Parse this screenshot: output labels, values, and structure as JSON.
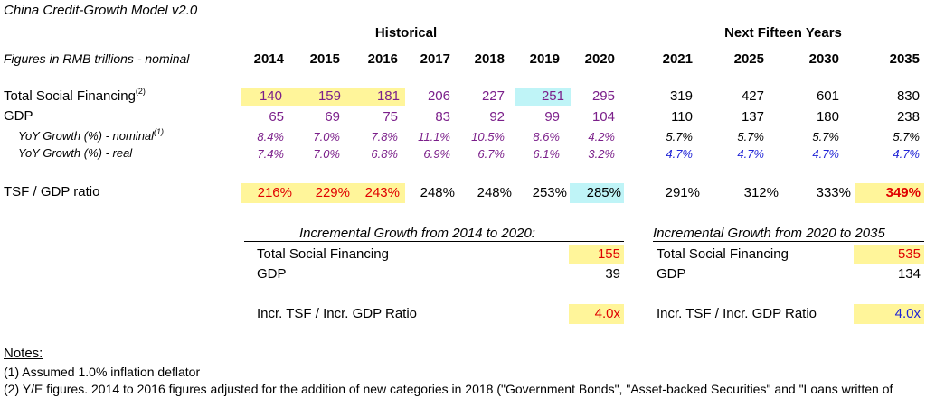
{
  "title": "China Credit-Growth Model v2.0",
  "subtitle": "Figures in RMB trillions - nominal",
  "headers": {
    "historical": "Historical",
    "next": "Next Fifteen Years"
  },
  "years": [
    "2014",
    "2015",
    "2016",
    "2017",
    "2018",
    "2019",
    "2020",
    "2021",
    "2025",
    "2030",
    "2035"
  ],
  "rows": {
    "tsf": {
      "label": "Total Social Financing",
      "sup": "(2)",
      "values": [
        "140",
        "159",
        "181",
        "206",
        "227",
        "251",
        "295",
        "319",
        "427",
        "601",
        "830"
      ]
    },
    "gdp": {
      "label": "GDP",
      "values": [
        "65",
        "69",
        "75",
        "83",
        "92",
        "99",
        "104",
        "110",
        "137",
        "180",
        "238"
      ]
    },
    "yoy_nominal": {
      "label": "YoY Growth (%) - nominal",
      "sup": "(1)",
      "values": [
        "8.4%",
        "7.0%",
        "7.8%",
        "11.1%",
        "10.5%",
        "8.6%",
        "4.2%",
        "5.7%",
        "5.7%",
        "5.7%",
        "5.7%"
      ]
    },
    "yoy_real": {
      "label": "YoY Growth (%) - real",
      "values": [
        "7.4%",
        "7.0%",
        "6.8%",
        "6.9%",
        "6.7%",
        "6.1%",
        "3.2%",
        "4.7%",
        "4.7%",
        "4.7%",
        "4.7%"
      ]
    },
    "ratio": {
      "label": "TSF / GDP ratio",
      "values": [
        "216%",
        "229%",
        "243%",
        "248%",
        "248%",
        "253%",
        "285%",
        "291%",
        "312%",
        "333%",
        "349%"
      ]
    }
  },
  "incremental_left": {
    "header": "Incremental Growth from 2014 to 2020:",
    "tsf_label": "Total Social Financing",
    "tsf_value": "155",
    "gdp_label": "GDP",
    "gdp_value": "39",
    "ratio_label": "Incr. TSF / Incr. GDP Ratio",
    "ratio_value": "4.0x"
  },
  "incremental_right": {
    "header": "Incremental Growth from 2020 to 2035",
    "tsf_label": "Total Social Financing",
    "tsf_value": "535",
    "gdp_label": "GDP",
    "gdp_value": "134",
    "ratio_label": "Incr. TSF / Incr. GDP Ratio",
    "ratio_value": "4.0x"
  },
  "notes": {
    "heading": "Notes:",
    "note1": "(1) Assumed 1.0% inflation deflator",
    "note2": "(2) Y/E figures. 2014 to 2016 figures adjusted for the addition of new categories in 2018 (\"Government Bonds\", \"Asset-backed Securities\" and \"Loans written of"
  },
  "colors": {
    "historical_text": "#7b1f8a",
    "forecast_assumption": "#1f23d6",
    "highlight_yellow": "#fff59a",
    "highlight_cyan": "#bff4f7",
    "emphasis_red": "#e00000"
  }
}
